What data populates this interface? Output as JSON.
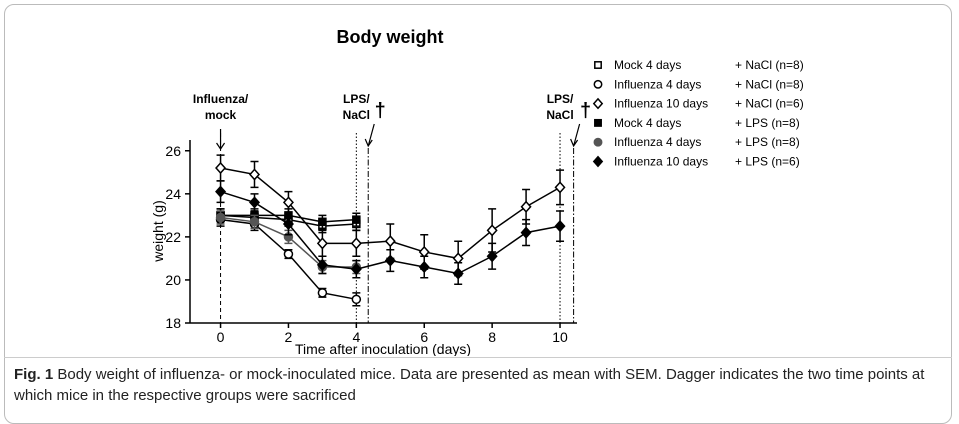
{
  "chart_data": {
    "type": "line",
    "title": "Body weight",
    "xlabel": "Time after inoculation (days)",
    "ylabel": "weight  (g)",
    "xlim": [
      -0.9,
      10.5
    ],
    "xticks": [
      0,
      2,
      4,
      6,
      8,
      10
    ],
    "ylim": [
      18,
      26.5
    ],
    "yticks": [
      18,
      20,
      22,
      24,
      26
    ],
    "series": [
      {
        "name": "Mock 4 days",
        "treatment": "+ NaCl (n=8)",
        "marker": "square",
        "color": "#000",
        "fill": "#fff",
        "x": [
          0,
          1,
          2,
          3,
          4
        ],
        "values": [
          23.0,
          22.9,
          22.8,
          22.5,
          22.6
        ],
        "errors": [
          0.3,
          0.3,
          0.3,
          0.3,
          0.3
        ]
      },
      {
        "name": "Influenza 4 days",
        "treatment": "+ NaCl (n=8)",
        "marker": "circle",
        "color": "#000",
        "fill": "#fff",
        "x": [
          0,
          1,
          2,
          3,
          4
        ],
        "values": [
          22.8,
          22.6,
          21.2,
          19.4,
          19.1
        ],
        "errors": [
          0.3,
          0.3,
          0.2,
          0.2,
          0.3
        ]
      },
      {
        "name": "Influenza 10 days",
        "treatment": "+ NaCl (n=6)",
        "marker": "diamond",
        "color": "#000",
        "fill": "#fff",
        "x": [
          0,
          1,
          2,
          3,
          4,
          5,
          6,
          7,
          8,
          9,
          10
        ],
        "values": [
          25.2,
          24.9,
          23.6,
          21.7,
          21.7,
          21.8,
          21.3,
          21.0,
          22.3,
          23.4,
          24.3
        ],
        "errors": [
          0.6,
          0.6,
          0.5,
          0.6,
          0.6,
          0.8,
          0.8,
          0.8,
          1.0,
          0.8,
          0.8
        ]
      },
      {
        "name": "Mock 4 days",
        "treatment": "+ LPS (n=8)",
        "marker": "square",
        "color": "#000",
        "fill": "#000",
        "x": [
          0,
          1,
          2,
          3,
          4
        ],
        "values": [
          23.0,
          23.0,
          23.0,
          22.7,
          22.8
        ],
        "errors": [
          0.3,
          0.3,
          0.3,
          0.3,
          0.3
        ]
      },
      {
        "name": "Influenza 4 days",
        "treatment": "+ LPS (n=8)",
        "marker": "circle",
        "color": "#555",
        "fill": "#555",
        "x": [
          0,
          1,
          2,
          3,
          4
        ],
        "values": [
          22.9,
          22.7,
          22.0,
          20.6,
          20.6
        ],
        "errors": [
          0.3,
          0.3,
          0.3,
          0.3,
          0.3
        ]
      },
      {
        "name": "Influenza 10 days",
        "treatment": "+ LPS (n=6)",
        "marker": "diamond",
        "color": "#000",
        "fill": "#000",
        "x": [
          0,
          1,
          2,
          3,
          4,
          5,
          6,
          7,
          8,
          9,
          10
        ],
        "values": [
          24.1,
          23.6,
          22.6,
          20.7,
          20.5,
          20.9,
          20.6,
          20.3,
          21.1,
          22.2,
          22.5
        ],
        "errors": [
          0.5,
          0.4,
          0.5,
          0.4,
          0.4,
          0.5,
          0.5,
          0.5,
          0.6,
          0.6,
          0.7
        ]
      }
    ],
    "annotations": [
      {
        "lines": [
          "Influenza/",
          "mock"
        ],
        "x": 0,
        "style": "dashed"
      },
      {
        "lines": [
          "LPS/",
          "NaCl"
        ],
        "x": 4,
        "style": "dotted"
      },
      {
        "lines": [
          "LPS/",
          "NaCl"
        ],
        "x": 10,
        "style": "dotted"
      }
    ],
    "daggers": [
      {
        "symbol": "†",
        "x": 4.35
      },
      {
        "symbol": "†",
        "x": 10.4
      }
    ]
  },
  "caption": {
    "label": "Fig. 1",
    "text": "Body weight of influenza- or mock-inoculated mice. Data are presented as mean with SEM. Dagger indicates the two time points at which mice in the respective groups were sacrificed"
  }
}
